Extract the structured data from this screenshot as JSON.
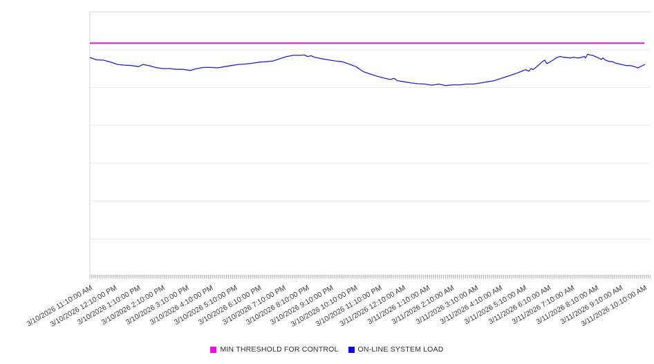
{
  "page": {
    "background_color": "#ffffff"
  },
  "chart_data": {
    "type": "line",
    "title": "",
    "xlabel": "",
    "ylabel": "",
    "x_labels": [
      "3/10/2026 11:10:00 AM",
      "3/10/2026 12:10:00 PM",
      "3/10/2026 1:10:00 PM",
      "3/10/2026 2:10:00 PM",
      "3/10/2026 3:10:00 PM",
      "3/10/2026 4:10:00 PM",
      "3/10/2026 5:10:00 PM",
      "3/10/2026 6:10:00 PM",
      "3/10/2026 7:10:00 PM",
      "3/10/2026 8:10:00 PM",
      "3/10/2026 9:10:00 PM",
      "3/10/2026 10:10:00 PM",
      "3/10/2026 11:10:00 PM",
      "3/11/2026 12:10:00 AM",
      "3/11/2026 1:10:00 AM",
      "3/11/2026 2:10:00 AM",
      "3/11/2026 3:10:00 AM",
      "3/11/2026 4:10:00 AM",
      "3/11/2026 5:10:00 AM",
      "3/11/2026 6:10:00 AM",
      "3/11/2026 7:10:00 AM",
      "3/11/2026 8:10:00 AM",
      "3/11/2026 9:10:00 AM",
      "3/11/2026 10:10:00 AM"
    ],
    "x_minor_ticks_per_hour": 12,
    "ylim": [
      0,
      7
    ],
    "y_gridline_step": 1,
    "y_tick_labels_visible": false,
    "grid": "horizontal",
    "legend_position": "bottom-center",
    "grid_color": "#e8e8e8",
    "border_color": "#d6d6d6",
    "axis_color": "#c4c4c4",
    "tick_color": "#bdbdbd",
    "series": [
      {
        "name": "MIN THRESHOLD FOR CONTROL",
        "type": "threshold",
        "value": 6.17,
        "line_color": "#de12c8",
        "legend_color": "#f905e9"
      },
      {
        "name": "ON-LINE SYSTEM LOAD",
        "type": "line",
        "line_color": "#2121c4",
        "legend_color": "#0d0de0",
        "x_unit": "hours_since_first_tick",
        "points": [
          [
            0.0,
            5.79
          ],
          [
            0.29,
            5.73
          ],
          [
            0.57,
            5.72
          ],
          [
            0.86,
            5.67
          ],
          [
            1.15,
            5.61
          ],
          [
            1.43,
            5.59
          ],
          [
            1.72,
            5.58
          ],
          [
            2.01,
            5.55
          ],
          [
            2.21,
            5.61
          ],
          [
            2.44,
            5.58
          ],
          [
            2.72,
            5.53
          ],
          [
            3.01,
            5.5
          ],
          [
            3.3,
            5.5
          ],
          [
            3.58,
            5.48
          ],
          [
            3.87,
            5.48
          ],
          [
            4.16,
            5.45
          ],
          [
            4.44,
            5.5
          ],
          [
            4.73,
            5.53
          ],
          [
            5.02,
            5.53
          ],
          [
            5.31,
            5.52
          ],
          [
            5.59,
            5.55
          ],
          [
            5.88,
            5.58
          ],
          [
            6.17,
            5.61
          ],
          [
            6.45,
            5.62
          ],
          [
            6.74,
            5.64
          ],
          [
            7.03,
            5.67
          ],
          [
            7.31,
            5.68
          ],
          [
            7.6,
            5.7
          ],
          [
            7.89,
            5.76
          ],
          [
            8.17,
            5.82
          ],
          [
            8.46,
            5.85
          ],
          [
            8.75,
            5.85
          ],
          [
            8.89,
            5.86
          ],
          [
            9.03,
            5.82
          ],
          [
            9.18,
            5.84
          ],
          [
            9.32,
            5.8
          ],
          [
            9.61,
            5.76
          ],
          [
            9.89,
            5.73
          ],
          [
            10.18,
            5.7
          ],
          [
            10.47,
            5.68
          ],
          [
            10.75,
            5.62
          ],
          [
            11.04,
            5.55
          ],
          [
            11.33,
            5.42
          ],
          [
            11.61,
            5.36
          ],
          [
            11.9,
            5.3
          ],
          [
            12.19,
            5.25
          ],
          [
            12.47,
            5.21
          ],
          [
            12.62,
            5.24
          ],
          [
            12.76,
            5.18
          ],
          [
            13.05,
            5.15
          ],
          [
            13.33,
            5.12
          ],
          [
            13.62,
            5.1
          ],
          [
            13.91,
            5.09
          ],
          [
            14.19,
            5.06
          ],
          [
            14.48,
            5.09
          ],
          [
            14.77,
            5.05
          ],
          [
            15.05,
            5.07
          ],
          [
            15.34,
            5.07
          ],
          [
            15.63,
            5.09
          ],
          [
            15.91,
            5.09
          ],
          [
            16.2,
            5.12
          ],
          [
            16.49,
            5.15
          ],
          [
            16.77,
            5.18
          ],
          [
            17.06,
            5.24
          ],
          [
            17.35,
            5.3
          ],
          [
            17.63,
            5.36
          ],
          [
            17.92,
            5.43
          ],
          [
            18.07,
            5.47
          ],
          [
            18.21,
            5.43
          ],
          [
            18.3,
            5.5
          ],
          [
            18.38,
            5.47
          ],
          [
            18.5,
            5.53
          ],
          [
            18.64,
            5.61
          ],
          [
            18.78,
            5.69
          ],
          [
            18.87,
            5.72
          ],
          [
            18.96,
            5.63
          ],
          [
            19.07,
            5.67
          ],
          [
            19.21,
            5.72
          ],
          [
            19.36,
            5.79
          ],
          [
            19.5,
            5.82
          ],
          [
            19.64,
            5.8
          ],
          [
            19.79,
            5.79
          ],
          [
            19.93,
            5.78
          ],
          [
            20.07,
            5.8
          ],
          [
            20.22,
            5.78
          ],
          [
            20.36,
            5.79
          ],
          [
            20.5,
            5.82
          ],
          [
            20.56,
            5.78
          ],
          [
            20.65,
            5.88
          ],
          [
            20.73,
            5.86
          ],
          [
            20.85,
            5.85
          ],
          [
            20.99,
            5.81
          ],
          [
            21.13,
            5.77
          ],
          [
            21.22,
            5.74
          ],
          [
            21.28,
            5.78
          ],
          [
            21.39,
            5.72
          ],
          [
            21.54,
            5.69
          ],
          [
            21.68,
            5.68
          ],
          [
            21.82,
            5.64
          ],
          [
            21.97,
            5.62
          ],
          [
            22.11,
            5.6
          ],
          [
            22.25,
            5.58
          ],
          [
            22.4,
            5.58
          ],
          [
            22.54,
            5.56
          ],
          [
            22.68,
            5.53
          ],
          [
            22.74,
            5.52
          ],
          [
            22.83,
            5.55
          ],
          [
            22.94,
            5.58
          ],
          [
            23.03,
            5.61
          ]
        ]
      }
    ]
  }
}
